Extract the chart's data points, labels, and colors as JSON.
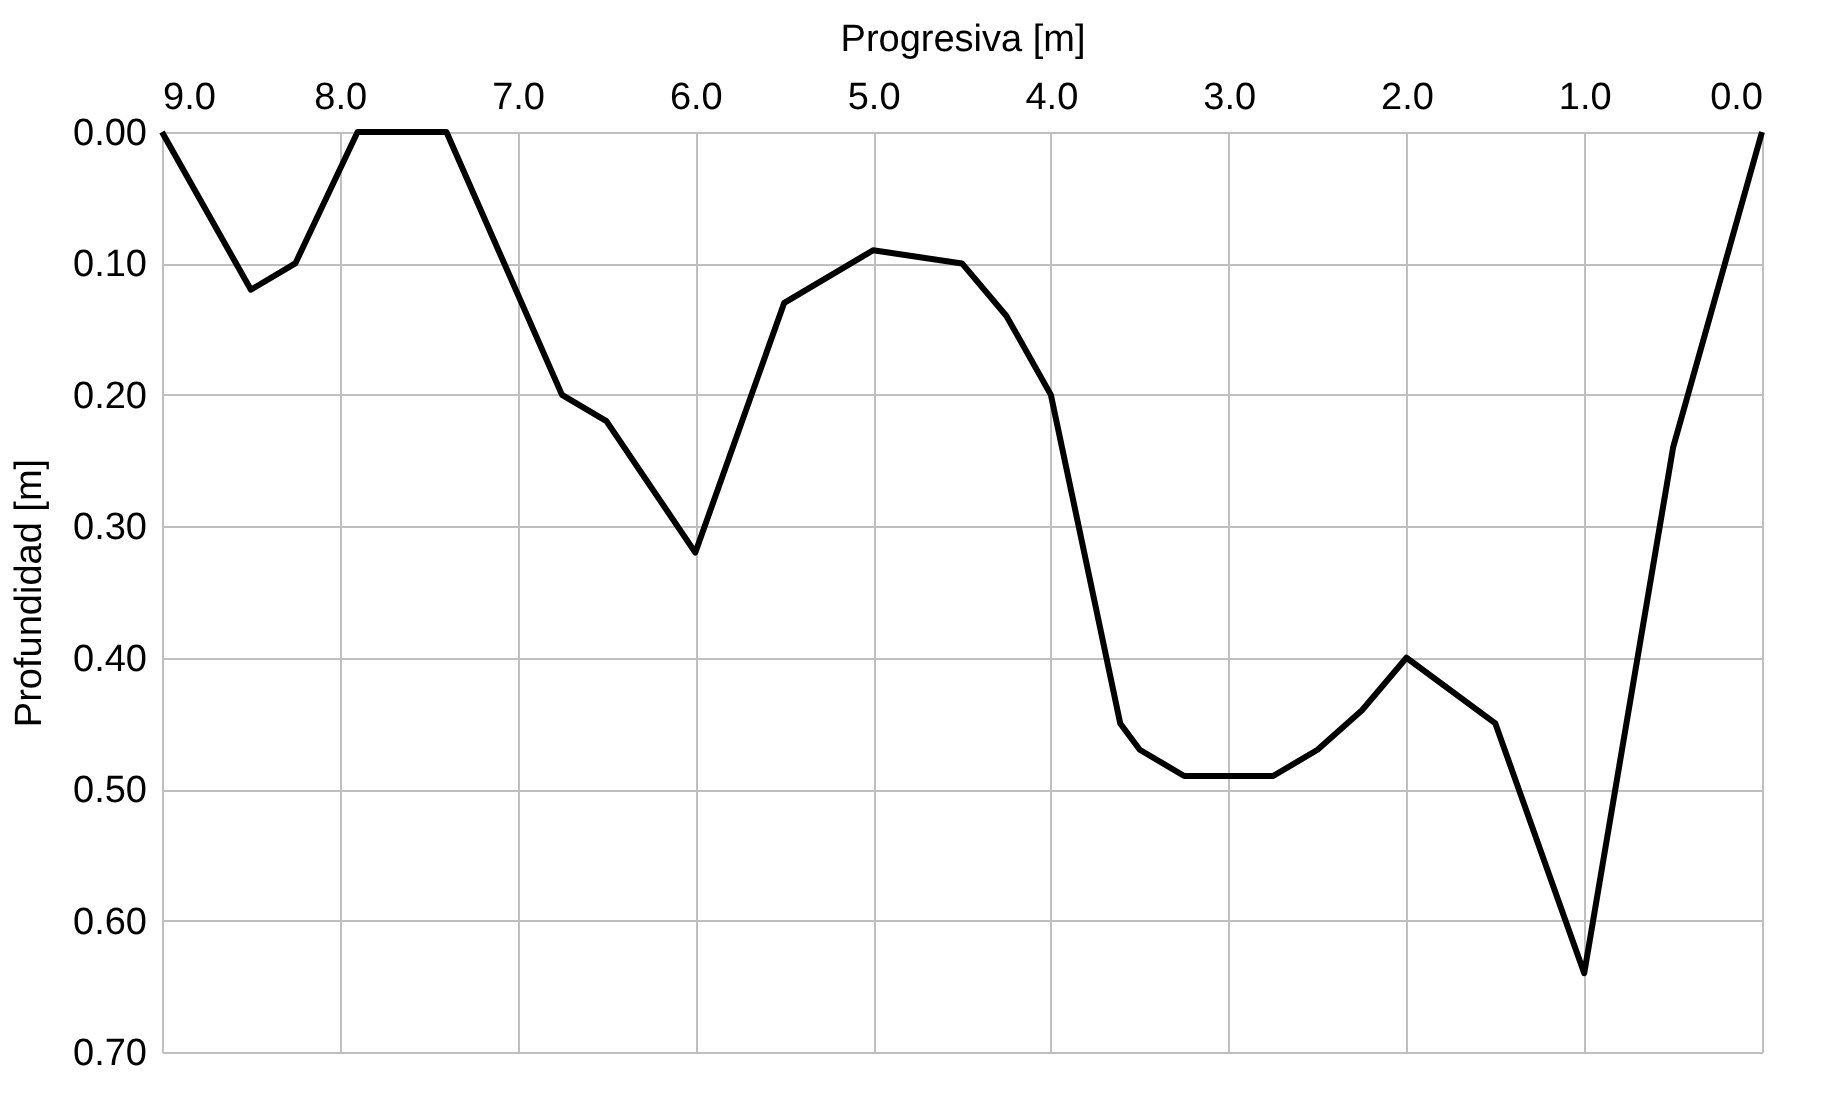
{
  "chart_data": {
    "type": "line",
    "xlabel": "Progresiva [m]",
    "ylabel": "Profundidad [m]",
    "x": [
      9.0,
      8.5,
      8.25,
      7.9,
      7.4,
      6.75,
      6.5,
      6.0,
      5.5,
      5.0,
      4.5,
      4.25,
      4.0,
      3.75,
      3.61,
      3.5,
      3.25,
      2.75,
      2.5,
      2.25,
      2.0,
      1.5,
      1.0,
      0.5,
      0.0
    ],
    "series": [
      {
        "color": "#000000",
        "values": [
          0.0,
          0.12,
          0.1,
          0.0,
          0.0,
          0.2,
          0.22,
          0.32,
          0.13,
          0.09,
          0.1,
          0.14,
          0.2,
          0.36,
          0.45,
          0.47,
          0.49,
          0.49,
          0.47,
          0.44,
          0.4,
          0.45,
          0.64,
          0.24,
          0.0
        ]
      }
    ],
    "xlim": [
      9.0,
      0.0
    ],
    "ylim": [
      0.7,
      0.0
    ],
    "xticks": [
      {
        "value": 9,
        "label": "9.0"
      },
      {
        "value": 8,
        "label": "8.0"
      },
      {
        "value": 7,
        "label": "7.0"
      },
      {
        "value": 6,
        "label": "6.0"
      },
      {
        "value": 5,
        "label": "5.0"
      },
      {
        "value": 4,
        "label": "4.0"
      },
      {
        "value": 3,
        "label": "3.0"
      },
      {
        "value": 2,
        "label": "2.0"
      },
      {
        "value": 1,
        "label": "1.0"
      },
      {
        "value": 0,
        "label": "0.0"
      }
    ],
    "yticks": [
      {
        "value": 0,
        "label": "0.00"
      },
      {
        "value": 0.1,
        "label": "0.10"
      },
      {
        "value": 0.2,
        "label": "0.20"
      },
      {
        "value": 0.3,
        "label": "0.30"
      },
      {
        "value": 0.4,
        "label": "0.40"
      },
      {
        "value": 0.5,
        "label": "0.50"
      },
      {
        "value": 0.6,
        "label": "0.60"
      },
      {
        "value": 0.7,
        "label": "0.70"
      }
    ],
    "grid": true,
    "marker": "none",
    "line_style": "solid"
  }
}
